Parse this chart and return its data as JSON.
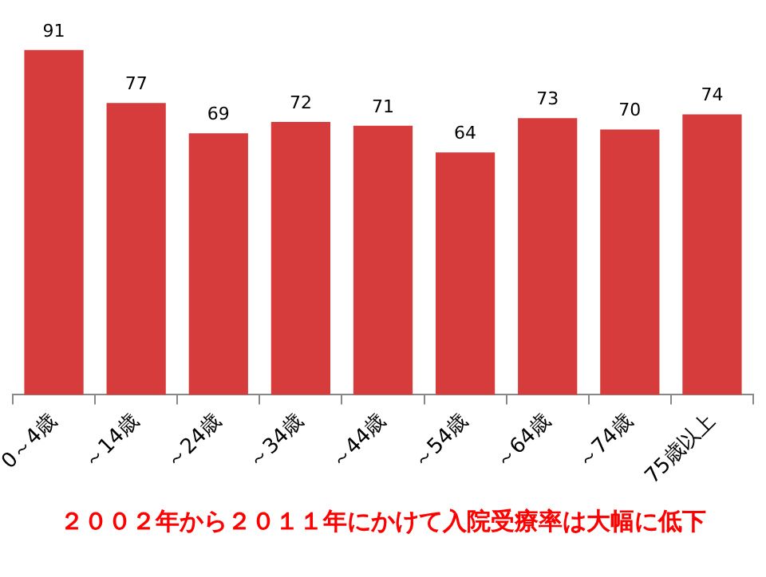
{
  "chart_data": {
    "type": "bar",
    "categories": [
      "0～4歳",
      "～14歳",
      "～24歳",
      "～34歳",
      "～44歳",
      "～54歳",
      "～64歳",
      "～74歳",
      "75歳以上"
    ],
    "values": [
      91,
      77,
      69,
      72,
      71,
      64,
      73,
      70,
      74
    ],
    "color": "#d63c3c",
    "data_labels": true,
    "grid": false,
    "legend": false,
    "tick_labels": "x",
    "annotations": [
      "２００２年から２０１１年にかけて入院受療率は大幅に低下"
    ]
  }
}
